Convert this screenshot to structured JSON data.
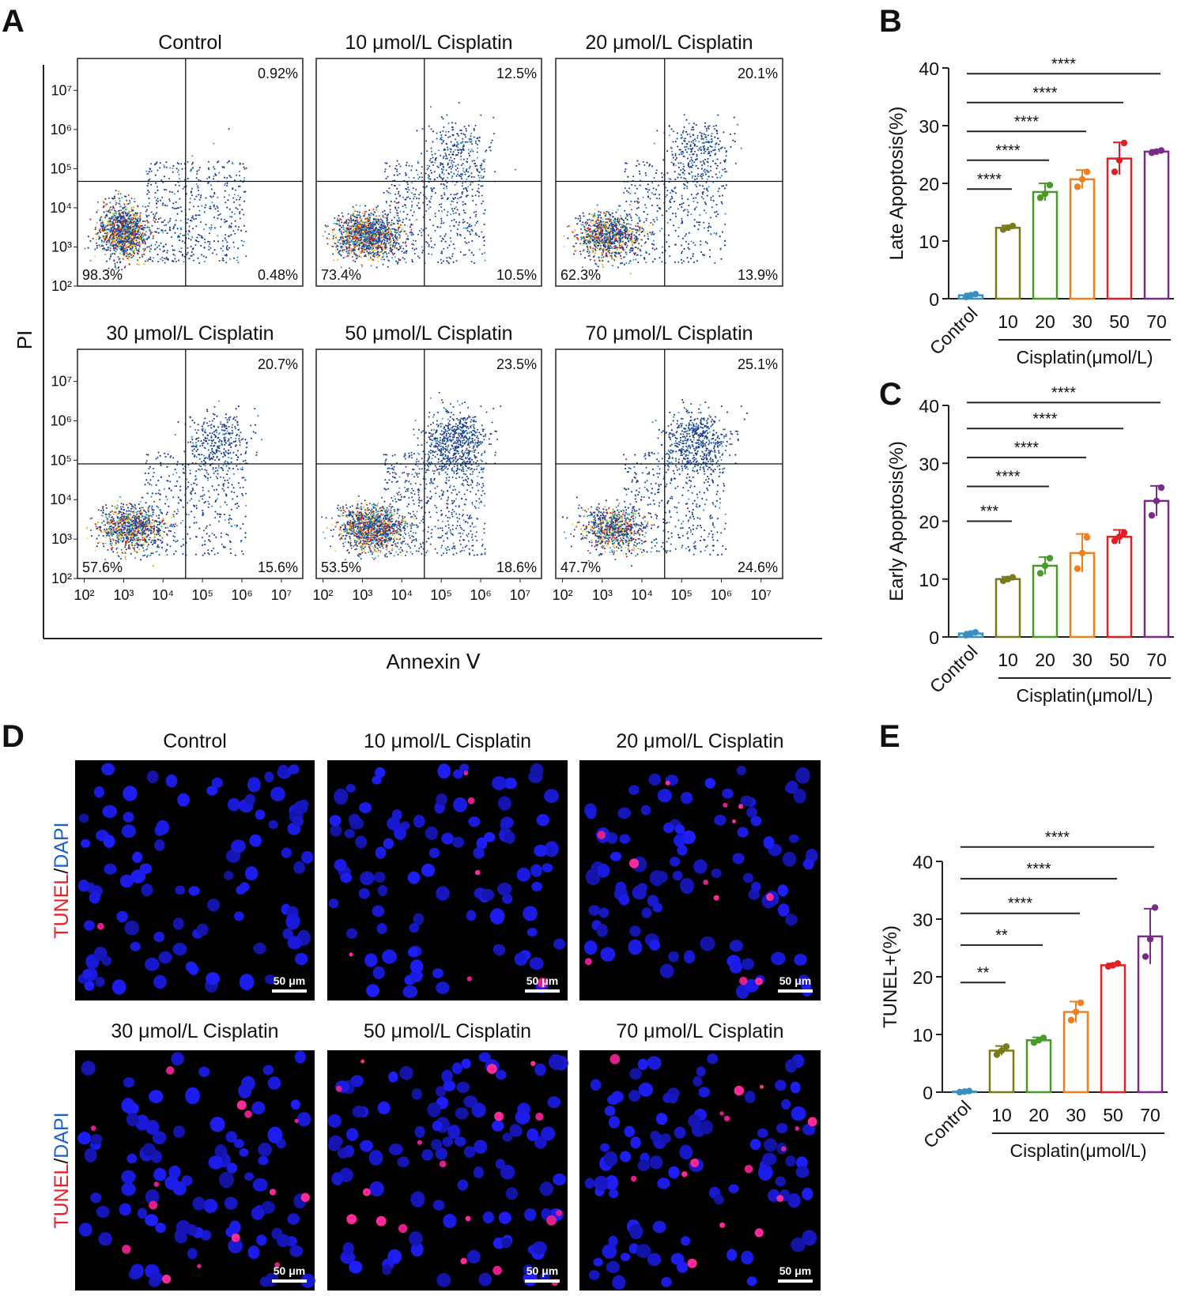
{
  "panel_labels": [
    "A",
    "B",
    "C",
    "D",
    "E"
  ],
  "flow": {
    "xlabel": "Annexin Ⅴ",
    "ylabel": "PI",
    "tick_labels": [
      "10²",
      "10³",
      "10⁴",
      "10⁵",
      "10⁶",
      "10⁷"
    ],
    "panels": [
      {
        "title": "Control",
        "q_ul": "",
        "q_ur": "0.92%",
        "q_ll": "98.3%",
        "q_lr": "0.48%"
      },
      {
        "title": "10 μmol/L Cisplatin",
        "q_ul": "",
        "q_ur": "12.5%",
        "q_ll": "73.4%",
        "q_lr": "10.5%"
      },
      {
        "title": "20 μmol/L Cisplatin",
        "q_ul": "",
        "q_ur": "20.1%",
        "q_ll": "62.3%",
        "q_lr": "13.9%"
      },
      {
        "title": "30 μmol/L Cisplatin",
        "q_ul": "",
        "q_ur": "20.7%",
        "q_ll": "57.6%",
        "q_lr": "15.6%"
      },
      {
        "title": "50 μmol/L Cisplatin",
        "q_ul": "",
        "q_ur": "23.5%",
        "q_ll": "53.5%",
        "q_lr": "18.6%"
      },
      {
        "title": "70 μmol/L Cisplatin",
        "q_ul": "",
        "q_ur": "25.1%",
        "q_ll": "47.7%",
        "q_lr": "24.6%"
      }
    ]
  },
  "microscopy": {
    "stain_label_tunel": "TUNEL",
    "stain_label_sep": "/",
    "stain_label_dapi": "DAPI",
    "scale_bar": "50 μm",
    "panels": [
      "Control",
      "10 μmol/L Cisplatin",
      "20 μmol/L Cisplatin",
      "30 μmol/L Cisplatin",
      "50 μmol/L Cisplatin",
      "70 μmol/L Cisplatin"
    ]
  },
  "colors": {
    "control": "#3a8fc0",
    "c10": "#7a7a1c",
    "c20": "#4a9a2a",
    "c30": "#f07f22",
    "c50": "#e02026",
    "c70": "#7a2a88",
    "tunel": "#e8202a",
    "dapi": "#1e64c8"
  },
  "chart_data": [
    {
      "panel": "B",
      "type": "bar",
      "ylabel": "Late Apoptosis(%)",
      "xlabel": "Cisplatin(μmol/L)",
      "categories": [
        "Control",
        "10",
        "20",
        "30",
        "50",
        "70"
      ],
      "values": [
        0.6,
        12.3,
        18.5,
        20.7,
        24.3,
        25.5
      ],
      "sd": [
        0.3,
        0.4,
        1.5,
        1.6,
        2.8,
        0.3
      ],
      "points": [
        [
          0.3,
          0.6,
          0.8
        ],
        [
          12.0,
          12.3,
          12.6
        ],
        [
          17.5,
          18.2,
          19.7
        ],
        [
          19.4,
          20.7,
          22.0
        ],
        [
          22.0,
          24.0,
          27.0
        ],
        [
          25.3,
          25.5,
          25.7
        ]
      ],
      "ylim": [
        0,
        40
      ],
      "yticks": [
        0,
        10,
        20,
        30,
        40
      ],
      "significance": [
        {
          "to": "10",
          "label": "****"
        },
        {
          "to": "20",
          "label": "****"
        },
        {
          "to": "30",
          "label": "****"
        },
        {
          "to": "50",
          "label": "****"
        },
        {
          "to": "70",
          "label": "****"
        }
      ]
    },
    {
      "panel": "C",
      "type": "bar",
      "ylabel": "Early Apoptosis(%)",
      "xlabel": "Cisplatin(μmol/L)",
      "categories": [
        "Control",
        "10",
        "20",
        "30",
        "50",
        "70"
      ],
      "values": [
        0.6,
        10.0,
        12.3,
        14.5,
        17.3,
        23.5
      ],
      "sd": [
        0.3,
        0.4,
        1.5,
        3.3,
        1.2,
        2.6
      ],
      "points": [
        [
          0.3,
          0.6,
          0.8
        ],
        [
          9.7,
          10.0,
          10.3
        ],
        [
          11.0,
          12.3,
          13.6
        ],
        [
          11.8,
          14.5,
          17.2
        ],
        [
          16.6,
          17.3,
          18.0
        ],
        [
          21.0,
          23.5,
          25.8
        ]
      ],
      "ylim": [
        0,
        40
      ],
      "yticks": [
        0,
        10,
        20,
        30,
        40
      ],
      "significance": [
        {
          "to": "10",
          "label": "***"
        },
        {
          "to": "20",
          "label": "****"
        },
        {
          "to": "30",
          "label": "****"
        },
        {
          "to": "50",
          "label": "****"
        },
        {
          "to": "70",
          "label": "****"
        }
      ]
    },
    {
      "panel": "E",
      "type": "bar",
      "ylabel": "TUNEL+(%)",
      "xlabel": "Cisplatin(μmol/L)",
      "categories": [
        "Control",
        "10",
        "20",
        "30",
        "50",
        "70"
      ],
      "values": [
        0.1,
        7.2,
        9.0,
        13.9,
        22.0,
        27.0
      ],
      "sd": [
        0.1,
        0.8,
        0.5,
        1.8,
        0.3,
        4.8
      ],
      "points": [
        [
          0.0,
          0.1,
          0.2
        ],
        [
          6.5,
          7.2,
          7.9
        ],
        [
          8.6,
          9.0,
          9.4
        ],
        [
          12.5,
          13.9,
          15.5
        ],
        [
          21.8,
          22.0,
          22.3
        ],
        [
          23.5,
          26.5,
          32.0
        ]
      ],
      "ylim": [
        0,
        40
      ],
      "yticks": [
        0,
        10,
        20,
        30,
        40
      ],
      "significance": [
        {
          "to": "10",
          "label": "**"
        },
        {
          "to": "20",
          "label": "**"
        },
        {
          "to": "30",
          "label": "****"
        },
        {
          "to": "50",
          "label": "****"
        },
        {
          "to": "70",
          "label": "****"
        }
      ]
    }
  ]
}
